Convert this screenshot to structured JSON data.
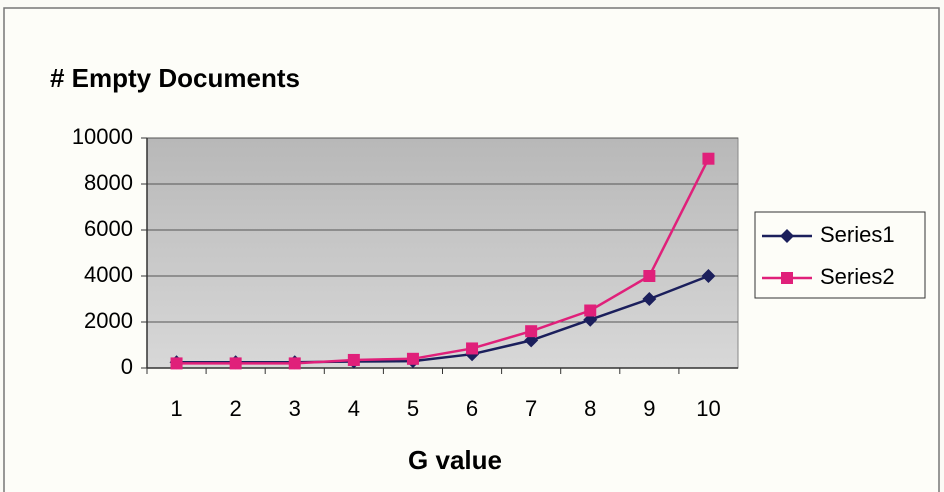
{
  "chart_data": {
    "type": "line",
    "title": "# Empty Documents",
    "x_label": "G value",
    "categories": [
      "1",
      "2",
      "3",
      "4",
      "5",
      "6",
      "7",
      "8",
      "9",
      "10"
    ],
    "series": [
      {
        "name": "Series1",
        "color": "#1b1f5c",
        "marker": "diamond",
        "values": [
          250,
          250,
          250,
          280,
          300,
          600,
          1200,
          2100,
          3000,
          4000
        ]
      },
      {
        "name": "Series2",
        "color": "#e0207a",
        "marker": "square",
        "values": [
          200,
          200,
          200,
          350,
          400,
          850,
          1600,
          2500,
          4000,
          9100
        ]
      }
    ],
    "ylim": [
      0,
      10000
    ],
    "yticks": [
      0,
      2000,
      4000,
      6000,
      8000,
      10000
    ],
    "grid": true,
    "legend": "right"
  }
}
